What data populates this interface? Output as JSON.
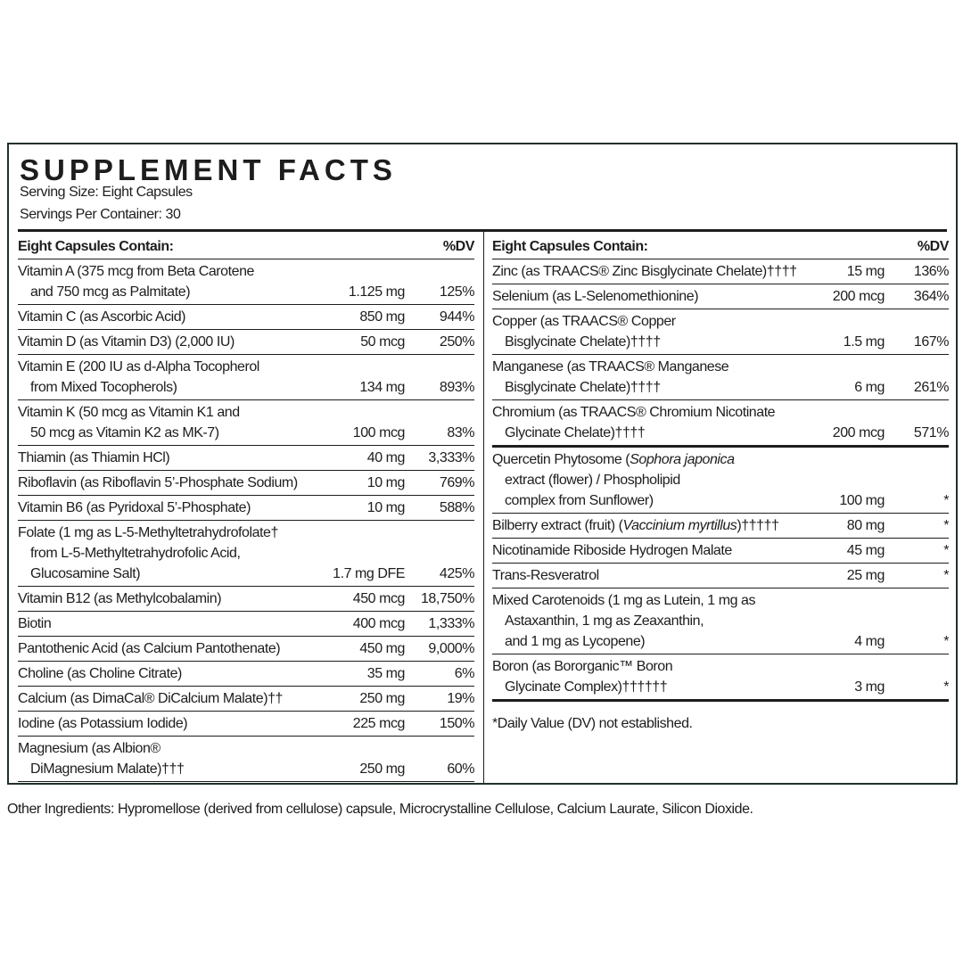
{
  "header": {
    "title": "SUPPLEMENT FACTS",
    "serving_size": "Serving Size: Eight Capsules",
    "servings_per_container": "Servings Per Container: 30"
  },
  "left": {
    "columns": [
      "Eight Capsules Contain:",
      "%DV"
    ],
    "rows": [
      {
        "name": [
          "Vitamin A (375 mcg from Beta Carotene",
          "and 750 mcg as Palmitate)"
        ],
        "amount": "1.125 mg",
        "dv": "125%"
      },
      {
        "name": [
          "Vitamin C (as Ascorbic Acid)"
        ],
        "amount": "850 mg",
        "dv": "944%"
      },
      {
        "name": [
          "Vitamin D (as Vitamin D3) (2,000 IU)"
        ],
        "amount": "50 mcg",
        "dv": "250%"
      },
      {
        "name": [
          "Vitamin E (200 IU as d-Alpha Tocopherol",
          "from Mixed Tocopherols)"
        ],
        "amount": "134 mg",
        "dv": "893%"
      },
      {
        "name": [
          "Vitamin K (50 mcg as Vitamin K1 and",
          "50 mcg as Vitamin K2 as MK-7)"
        ],
        "amount": "100 mcg",
        "dv": "83%"
      },
      {
        "name": [
          "Thiamin (as Thiamin HCl)"
        ],
        "amount": "40 mg",
        "dv": "3,333%"
      },
      {
        "name": [
          "Riboflavin (as Riboflavin 5’-Phosphate Sodium)"
        ],
        "amount": "10 mg",
        "dv": "769%"
      },
      {
        "name": [
          "Vitamin B6 (as Pyridoxal 5’-Phosphate)"
        ],
        "amount": "10 mg",
        "dv": "588%"
      },
      {
        "name": [
          "Folate (1 mg as L-5-Methyltetrahydrofolate†",
          "from L-5-Methyltetrahydrofolic Acid,",
          "Glucosamine Salt)"
        ],
        "amount": "1.7 mg DFE",
        "dv": "425%"
      },
      {
        "name": [
          "Vitamin B12 (as Methylcobalamin)"
        ],
        "amount": "450 mcg",
        "dv": "18,750%"
      },
      {
        "name": [
          "Biotin"
        ],
        "amount": "400 mcg",
        "dv": "1,333%"
      },
      {
        "name": [
          "Pantothenic Acid (as Calcium Pantothenate)"
        ],
        "amount": "450 mg",
        "dv": "9,000%"
      },
      {
        "name": [
          "Choline (as Choline Citrate)"
        ],
        "amount": "35 mg",
        "dv": "6%"
      },
      {
        "name": [
          "Calcium (as DimaCal® DiCalcium Malate)††"
        ],
        "amount": "250 mg",
        "dv": "19%"
      },
      {
        "name": [
          "Iodine (as Potassium Iodide)"
        ],
        "amount": "225 mcg",
        "dv": "150%"
      },
      {
        "name": [
          "Magnesium (as Albion®",
          "DiMagnesium Malate)†††"
        ],
        "amount": "250 mg",
        "dv": "60%"
      }
    ]
  },
  "right": {
    "columns": [
      "Eight Capsules Contain:",
      "%DV"
    ],
    "groups": [
      {
        "rows": [
          {
            "name": [
              "Zinc (as TRAACS® Zinc Bisglycinate Chelate)††††"
            ],
            "amount": "15 mg",
            "dv": "136%"
          },
          {
            "name": [
              "Selenium (as L-Selenomethionine)"
            ],
            "amount": "200 mcg",
            "dv": "364%"
          },
          {
            "name": [
              "Copper (as TRAACS® Copper",
              "Bisglycinate Chelate)††††"
            ],
            "amount": "1.5 mg",
            "dv": "167%"
          },
          {
            "name": [
              "Manganese (as TRAACS® Manganese",
              "Bisglycinate Chelate)††††"
            ],
            "amount": "6 mg",
            "dv": "261%"
          },
          {
            "name": [
              "Chromium (as TRAACS® Chromium Nicotinate",
              "Glycinate Chelate)††††"
            ],
            "amount": "200 mcg",
            "dv": "571%"
          }
        ]
      },
      {
        "rows": [
          {
            "name": [
              [
                "Quercetin Phytosome (",
                {
                  "italic": "Sophora japonica"
                }
              ],
              "extract (flower) / Phospholipid",
              "complex from Sunflower)"
            ],
            "amount": "100 mg",
            "dv": "*"
          },
          {
            "name": [
              [
                "Bilberry extract (fruit) (",
                {
                  "italic": "Vaccinium myrtillus"
                },
                ")†††††"
              ]
            ],
            "amount": "80 mg",
            "dv": "*"
          },
          {
            "name": [
              "Nicotinamide Riboside Hydrogen Malate"
            ],
            "amount": "45 mg",
            "dv": "*"
          },
          {
            "name": [
              "Trans-Resveratrol"
            ],
            "amount": "25 mg",
            "dv": "*"
          },
          {
            "name": [
              "Mixed Carotenoids (1 mg as Lutein, 1 mg as",
              "Astaxanthin, 1 mg as Zeaxanthin,",
              "and 1 mg as Lycopene)"
            ],
            "amount": "4 mg",
            "dv": "*"
          },
          {
            "name": [
              "Boron (as Bororganic™ Boron",
              "Glycinate Complex)††††††"
            ],
            "amount": "3 mg",
            "dv": "*"
          }
        ]
      }
    ],
    "footnote": "*Daily Value (DV) not established."
  },
  "other_ingredients": "Other Ingredients: Hypromellose (derived from cellulose) capsule, Microcrystalline Cellulose, Calcium Laurate, Silicon Dioxide."
}
